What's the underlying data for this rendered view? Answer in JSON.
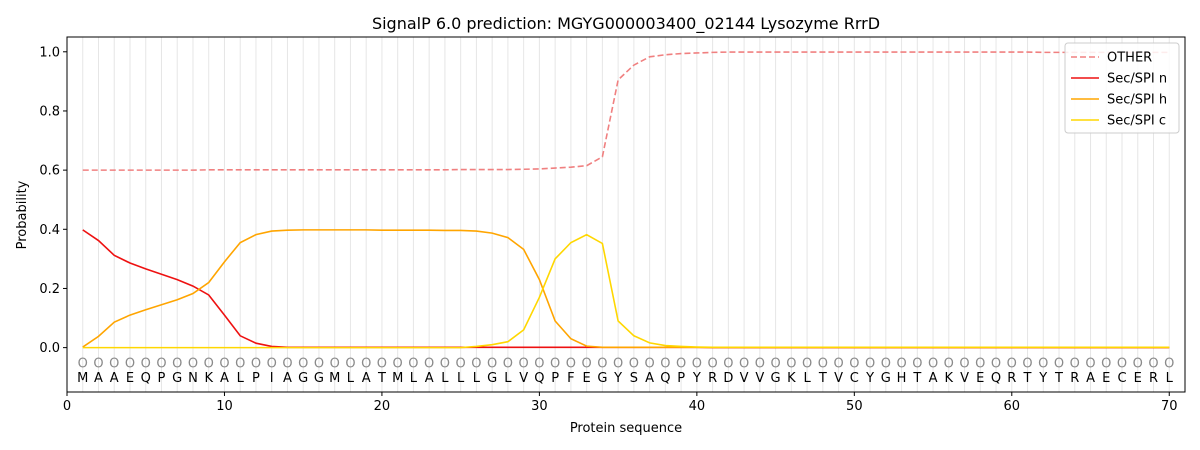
{
  "chart_data": {
    "type": "line",
    "title": "SignalP 6.0 prediction: MGYG000003400_02144 Lysozyme RrrD",
    "xlabel": "Protein sequence",
    "ylabel": "Probability",
    "xlim": [
      0,
      71
    ],
    "ylim": [
      -0.15,
      1.05
    ],
    "xticks": [
      0,
      10,
      20,
      30,
      40,
      50,
      60,
      70
    ],
    "yticks": [
      0.0,
      0.2,
      0.4,
      0.6,
      0.8,
      1.0
    ],
    "ytick_labels": [
      "0.0",
      "0.2",
      "0.4",
      "0.6",
      "0.8",
      "1.0"
    ],
    "legend_position": "top-right",
    "grid": "vertical lines at each residue",
    "residues": [
      "M",
      "A",
      "A",
      "E",
      "Q",
      "P",
      "G",
      "N",
      "K",
      "A",
      "L",
      "P",
      "I",
      "A",
      "G",
      "G",
      "M",
      "L",
      "A",
      "T",
      "M",
      "L",
      "A",
      "L",
      "L",
      "L",
      "G",
      "L",
      "V",
      "Q",
      "P",
      "F",
      "E",
      "G",
      "Y",
      "S",
      "A",
      "Q",
      "P",
      "Y",
      "R",
      "D",
      "V",
      "V",
      "G",
      "K",
      "L",
      "T",
      "V",
      "C",
      "Y",
      "G",
      "H",
      "T",
      "A",
      "K",
      "V",
      "E",
      "Q",
      "R",
      "T",
      "Y",
      "T",
      "R",
      "A",
      "E",
      "C",
      "E",
      "R",
      "L"
    ],
    "residue_marker": "O",
    "series": [
      {
        "name": "OTHER",
        "color": "#f08080",
        "style": "dashed",
        "values": [
          0.6,
          0.6,
          0.6,
          0.6,
          0.6,
          0.6,
          0.6,
          0.6,
          0.601,
          0.601,
          0.601,
          0.601,
          0.601,
          0.601,
          0.601,
          0.601,
          0.601,
          0.601,
          0.601,
          0.601,
          0.601,
          0.601,
          0.601,
          0.601,
          0.602,
          0.602,
          0.602,
          0.602,
          0.603,
          0.604,
          0.607,
          0.61,
          0.615,
          0.645,
          0.905,
          0.955,
          0.983,
          0.99,
          0.994,
          0.996,
          0.998,
          0.999,
          0.999,
          0.999,
          0.999,
          0.999,
          0.999,
          0.999,
          0.999,
          0.999,
          0.999,
          0.999,
          0.999,
          0.999,
          0.999,
          0.999,
          0.999,
          0.999,
          0.999,
          0.999,
          0.999,
          0.998,
          0.998,
          0.998,
          0.998,
          0.998,
          0.998,
          0.998,
          0.998,
          0.998
        ]
      },
      {
        "name": "Sec/SPI n",
        "color": "#ee1111",
        "style": "solid",
        "values": [
          0.398,
          0.362,
          0.312,
          0.286,
          0.266,
          0.248,
          0.23,
          0.208,
          0.178,
          0.11,
          0.04,
          0.015,
          0.004,
          0.001,
          0.001,
          0.001,
          0.001,
          0.001,
          0.001,
          0.001,
          0.001,
          0.001,
          0.001,
          0.001,
          0.001,
          0.001,
          0.001,
          0.001,
          0.001,
          0.001,
          0.001,
          0.001,
          0.001,
          0.001,
          0.001,
          0.001,
          0.001,
          0.001,
          0.001,
          0.001,
          0,
          0,
          0,
          0,
          0,
          0,
          0,
          0,
          0,
          0,
          0,
          0,
          0,
          0,
          0,
          0,
          0,
          0,
          0,
          0,
          0,
          0,
          0,
          0,
          0,
          0,
          0,
          0,
          0,
          0
        ]
      },
      {
        "name": "Sec/SPI h",
        "color": "#ffa500",
        "style": "solid",
        "values": [
          0.002,
          0.038,
          0.086,
          0.11,
          0.128,
          0.145,
          0.162,
          0.183,
          0.22,
          0.29,
          0.355,
          0.382,
          0.394,
          0.397,
          0.398,
          0.398,
          0.398,
          0.398,
          0.398,
          0.397,
          0.397,
          0.397,
          0.397,
          0.396,
          0.396,
          0.394,
          0.387,
          0.372,
          0.332,
          0.23,
          0.09,
          0.03,
          0.005,
          0.001,
          0.001,
          0.001,
          0.001,
          0.001,
          0.001,
          0.001,
          0.001,
          0.001,
          0.001,
          0.001,
          0.001,
          0.001,
          0.001,
          0.001,
          0.001,
          0.001,
          0.001,
          0.001,
          0.001,
          0.001,
          0.001,
          0.001,
          0.001,
          0.001,
          0.001,
          0.001,
          0.001,
          0.001,
          0.001,
          0.001,
          0.001,
          0.001,
          0.001,
          0.001,
          0.001,
          0.001
        ]
      },
      {
        "name": "Sec/SPI c",
        "color": "#ffd700",
        "style": "solid",
        "values": [
          0,
          0,
          0,
          0,
          0,
          0,
          0,
          0,
          0,
          0,
          0,
          0,
          0,
          0,
          0,
          0,
          0,
          0,
          0,
          0,
          0,
          0,
          0,
          0,
          0,
          0.004,
          0.01,
          0.02,
          0.06,
          0.17,
          0.3,
          0.355,
          0.382,
          0.352,
          0.09,
          0.04,
          0.016,
          0.007,
          0.004,
          0.002,
          0.001,
          0.001,
          0.001,
          0.001,
          0.001,
          0.001,
          0.001,
          0.001,
          0.001,
          0.001,
          0.001,
          0.001,
          0.001,
          0.001,
          0.001,
          0.001,
          0.001,
          0.001,
          0.001,
          0.001,
          0.001,
          0.001,
          0.001,
          0.001,
          0.001,
          0.001,
          0.001,
          0.001,
          0.001,
          0.001
        ]
      }
    ]
  }
}
